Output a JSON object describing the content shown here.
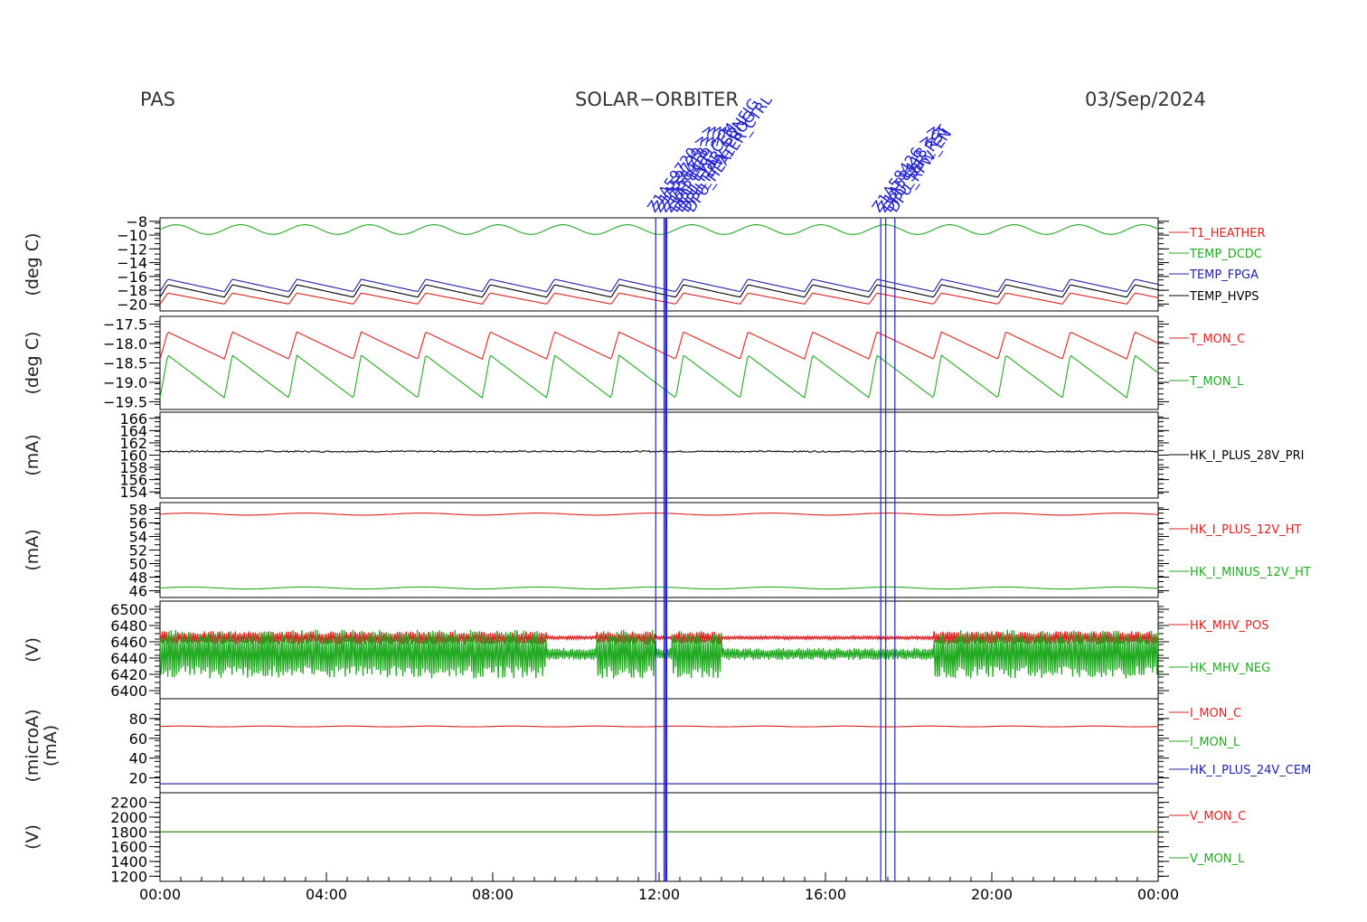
{
  "header": {
    "instrument": "PAS",
    "mission": "SOLAR−ORBITER",
    "date": "03/Sep/2024"
  },
  "colors": {
    "red": "#dd2222",
    "green": "#22aa22",
    "blue": "#2222aa",
    "black": "#000000",
    "event": "#2222cc"
  },
  "x_axis": {
    "ticks": [
      "00:00",
      "04:00",
      "08:00",
      "12:00",
      "16:00",
      "20:00",
      "00:00"
    ]
  },
  "events": {
    "times_h": [
      11.92,
      12.12,
      12.17,
      17.33,
      17.45,
      17.67
    ],
    "group1": [
      "Z1A59720 >>",
      "Z1A59729 >>",
      "Z1A58418 >>",
      "Z1A58409 >>",
      "DPU_EVT_CEM",
      "DPU_FDIR_CONFIG",
      "DPU_RPW_PROG",
      "DPU_HEATER_CTRL"
    ],
    "group2": [
      "Z1A58426 >>",
      "Z1A58418 >>",
      "DPU_SBR_RST",
      "DPU_RPW_EN"
    ]
  },
  "chart_data": [
    {
      "type": "line",
      "ylabel": "(deg C)",
      "ylim": [
        -21,
        -7.5
      ],
      "yticks": [
        -8,
        -10,
        -12,
        -14,
        -16,
        -18,
        -20
      ],
      "ytick_labels": [
        "−8",
        "−10",
        "−12",
        "−14",
        "−16",
        "−18",
        "−20"
      ],
      "series": [
        {
          "name": "T1_HEATHER",
          "color": "red",
          "base": -19.2,
          "amp": 0.8,
          "period": 1.55,
          "style": "saw"
        },
        {
          "name": "TEMP_DCDC",
          "color": "green",
          "base": -9.2,
          "amp": 0.7,
          "period": 1.55,
          "style": "sine"
        },
        {
          "name": "TEMP_FPGA",
          "color": "blue",
          "base": -17.3,
          "amp": 0.9,
          "period": 1.55,
          "style": "saw"
        },
        {
          "name": "TEMP_HVPS",
          "color": "black",
          "base": -18.1,
          "amp": 0.9,
          "period": 1.55,
          "style": "saw"
        }
      ]
    },
    {
      "type": "line",
      "ylabel": "(deg C)",
      "ylim": [
        -19.7,
        -17.3
      ],
      "yticks": [
        -17.5,
        -18.0,
        -18.5,
        -19.0,
        -19.5
      ],
      "ytick_labels": [
        "−17.5",
        "−18.0",
        "−18.5",
        "−19.0",
        "−19.5"
      ],
      "series": [
        {
          "name": "T_MON_C",
          "color": "red",
          "base": -18.05,
          "amp": 0.35,
          "period": 1.55,
          "style": "saw"
        },
        {
          "name": "T_MON_L",
          "color": "green",
          "base": -18.85,
          "amp": 0.55,
          "period": 1.55,
          "style": "saw"
        }
      ]
    },
    {
      "type": "line",
      "ylabel": "(mA)",
      "ylim": [
        153,
        167
      ],
      "yticks": [
        166,
        164,
        162,
        160,
        158,
        156,
        154
      ],
      "ytick_labels": [
        "166",
        "164",
        "162",
        "160",
        "158",
        "156",
        "154"
      ],
      "series": [
        {
          "name": "HK_I_PLUS_28V_PRI",
          "color": "black",
          "base": 160.6,
          "amp": 0.12,
          "period": 2.5,
          "style": "noise"
        }
      ]
    },
    {
      "type": "line",
      "ylabel": "(mA)",
      "ylim": [
        45,
        59
      ],
      "yticks": [
        58,
        56,
        54,
        52,
        50,
        48,
        46
      ],
      "ytick_labels": [
        "58",
        "56",
        "54",
        "52",
        "50",
        "48",
        "46"
      ],
      "series": [
        {
          "name": "HK_I_PLUS_12V_HT",
          "color": "red",
          "base": 57.3,
          "amp": 0.15,
          "period": 2.8,
          "style": "sine"
        },
        {
          "name": "HK_I_MINUS_12V_HT",
          "color": "green",
          "base": 46.4,
          "amp": 0.15,
          "period": 2.8,
          "style": "sine"
        }
      ]
    },
    {
      "type": "line",
      "ylabel": "(V)",
      "ylim": [
        6390,
        6510
      ],
      "yticks": [
        6500,
        6480,
        6460,
        6440,
        6420,
        6400
      ],
      "ytick_labels": [
        "6500",
        "6480",
        "6460",
        "6440",
        "6420",
        "6400"
      ],
      "series": [
        {
          "name": "HK_MHV_POS",
          "color": "red",
          "base": 6465,
          "amp": 8,
          "period": 1.0,
          "style": "hv"
        },
        {
          "name": "HK_MHV_NEG",
          "color": "green",
          "base": 6445,
          "amp": 30,
          "period": 1.0,
          "style": "hv"
        }
      ]
    },
    {
      "type": "line",
      "ylabel": "(microA)",
      "ylabel2": "(mA)",
      "ylim": [
        5,
        100
      ],
      "yticks": [
        80,
        60,
        40,
        20
      ],
      "ytick_labels": [
        "80",
        "60",
        "40",
        "20"
      ],
      "series": [
        {
          "name": "I_MON_C",
          "color": "red",
          "base": 72,
          "amp": 0.4,
          "period": 2.0,
          "style": "sine"
        },
        {
          "name": "I_MON_L",
          "color": "green",
          "base": 14,
          "amp": 0.0,
          "period": 2.0,
          "style": "sine"
        },
        {
          "name": "HK_I_PLUS_24V_CEM",
          "color": "blue",
          "base": 14,
          "amp": 0.0,
          "period": 2.0,
          "style": "sine"
        }
      ]
    },
    {
      "type": "line",
      "ylabel": "(V)",
      "ylim": [
        1130,
        2330
      ],
      "yticks": [
        2200,
        2000,
        1800,
        1600,
        1400,
        1200
      ],
      "ytick_labels": [
        "2200",
        "2000",
        "1800",
        "1600",
        "1400",
        "1200"
      ],
      "series": [
        {
          "name": "V_MON_C",
          "color": "red",
          "base": 1800,
          "amp": 0.0,
          "period": 2.0,
          "style": "sine"
        },
        {
          "name": "V_MON_L",
          "color": "green",
          "base": 1800,
          "amp": 0.0,
          "period": 2.0,
          "style": "sine"
        }
      ]
    }
  ]
}
